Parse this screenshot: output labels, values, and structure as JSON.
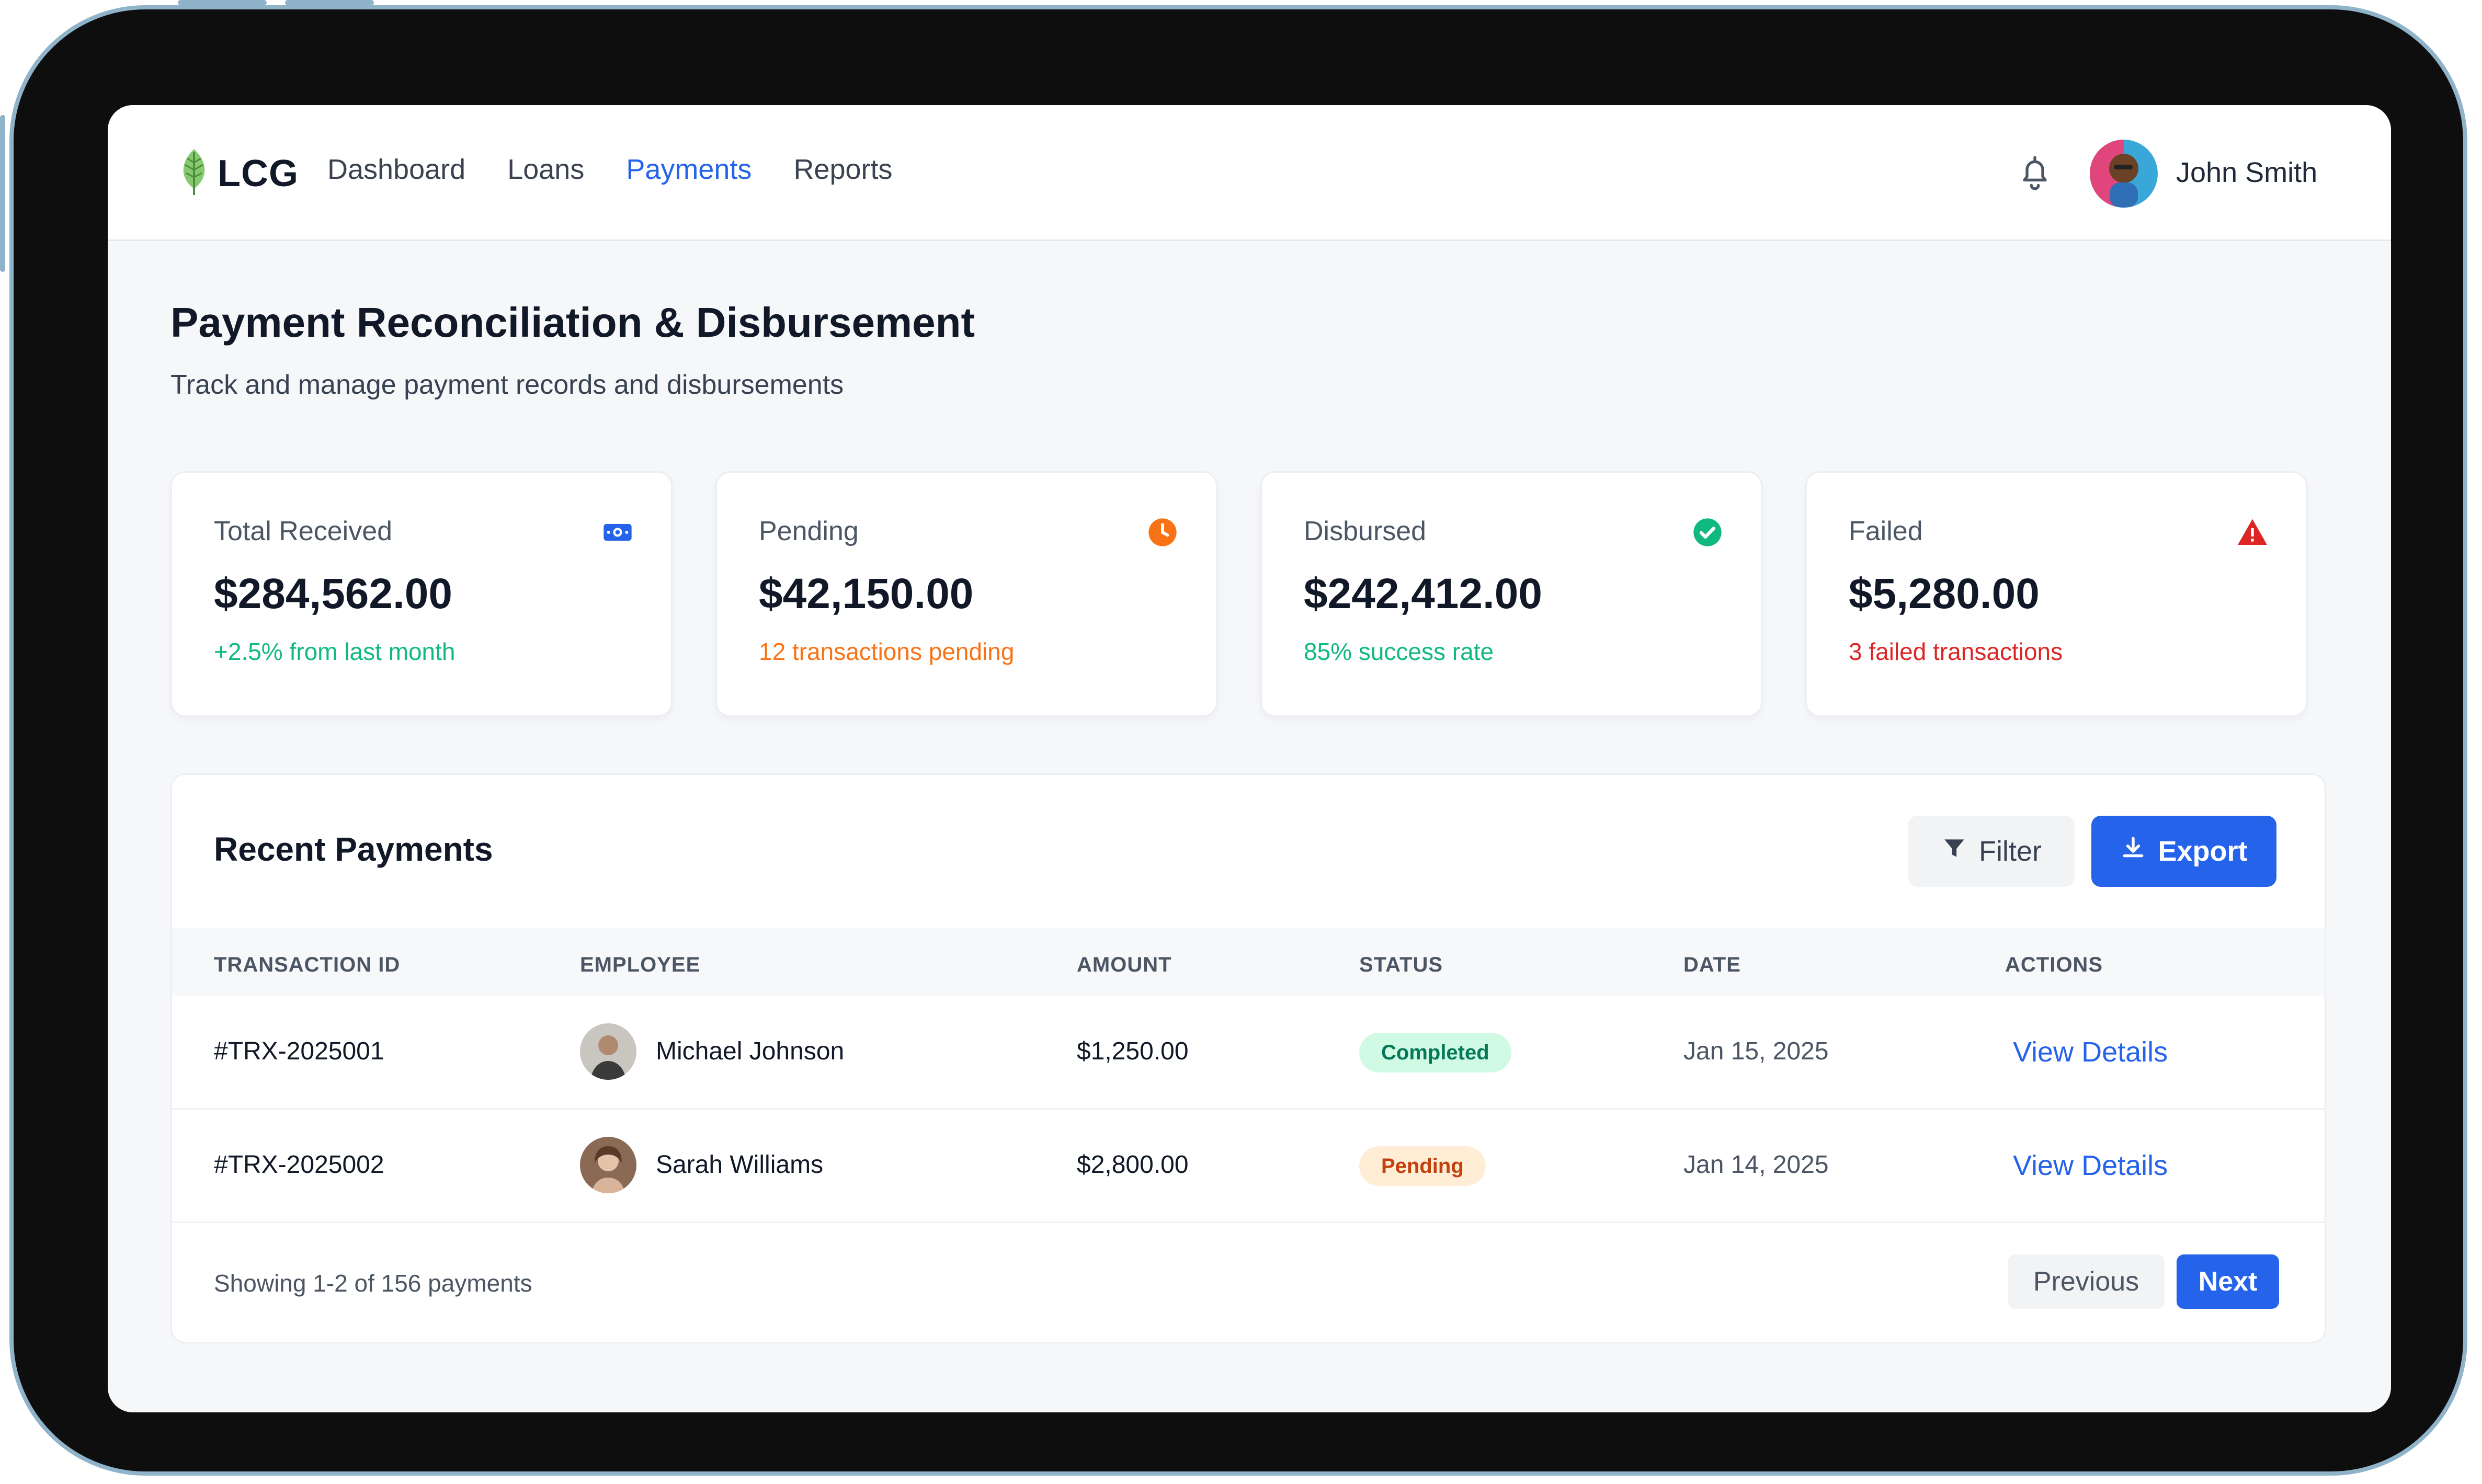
{
  "colors": {
    "accent": "#2563eb",
    "success": "#10b981",
    "warning": "#f97316",
    "danger": "#dc2626",
    "device_frame": "#0e0e0f",
    "device_border": "#8fb3c8"
  },
  "header": {
    "logo_text": "LCG",
    "logo_icon": "leaf-icon",
    "nav": [
      {
        "label": "Dashboard",
        "active": false
      },
      {
        "label": "Loans",
        "active": false
      },
      {
        "label": "Payments",
        "active": true
      },
      {
        "label": "Reports",
        "active": false
      }
    ],
    "notification_icon": "bell-icon",
    "user_name": "John Smith"
  },
  "page": {
    "title": "Payment Reconciliation & Disbursement",
    "subtitle": "Track and manage payment records and disbursements"
  },
  "stats": [
    {
      "label": "Total Received",
      "value": "$284,562.00",
      "note": "+2.5% from last month",
      "icon": "money-icon",
      "color": "#10b981",
      "icon_color": "#2563eb"
    },
    {
      "label": "Pending",
      "value": "$42,150.00",
      "note": "12 transactions pending",
      "icon": "clock-icon",
      "color": "#f97316",
      "icon_color": "#f97316"
    },
    {
      "label": "Disbursed",
      "value": "$242,412.00",
      "note": "85% success rate",
      "icon": "check-circle-icon",
      "color": "#10b981",
      "icon_color": "#10b981"
    },
    {
      "label": "Failed",
      "value": "$5,280.00",
      "note": "3 failed transactions",
      "icon": "warning-icon",
      "color": "#dc2626",
      "icon_color": "#dc2626"
    }
  ],
  "recent_payments": {
    "title": "Recent Payments",
    "filter_label": "Filter",
    "export_label": "Export",
    "columns": [
      "TRANSACTION ID",
      "EMPLOYEE",
      "AMOUNT",
      "STATUS",
      "DATE",
      "ACTIONS"
    ],
    "rows": [
      {
        "id": "#TRX-2025001",
        "employee": "Michael Johnson",
        "amount": "$1,250.00",
        "status": "Completed",
        "date": "Jan 15, 2025",
        "action": "View Details"
      },
      {
        "id": "#TRX-2025002",
        "employee": "Sarah Williams",
        "amount": "$2,800.00",
        "status": "Pending",
        "date": "Jan 14, 2025",
        "action": "View Details"
      }
    ],
    "footer_text": "Showing 1-2 of 156 payments",
    "prev_label": "Previous",
    "next_label": "Next"
  }
}
